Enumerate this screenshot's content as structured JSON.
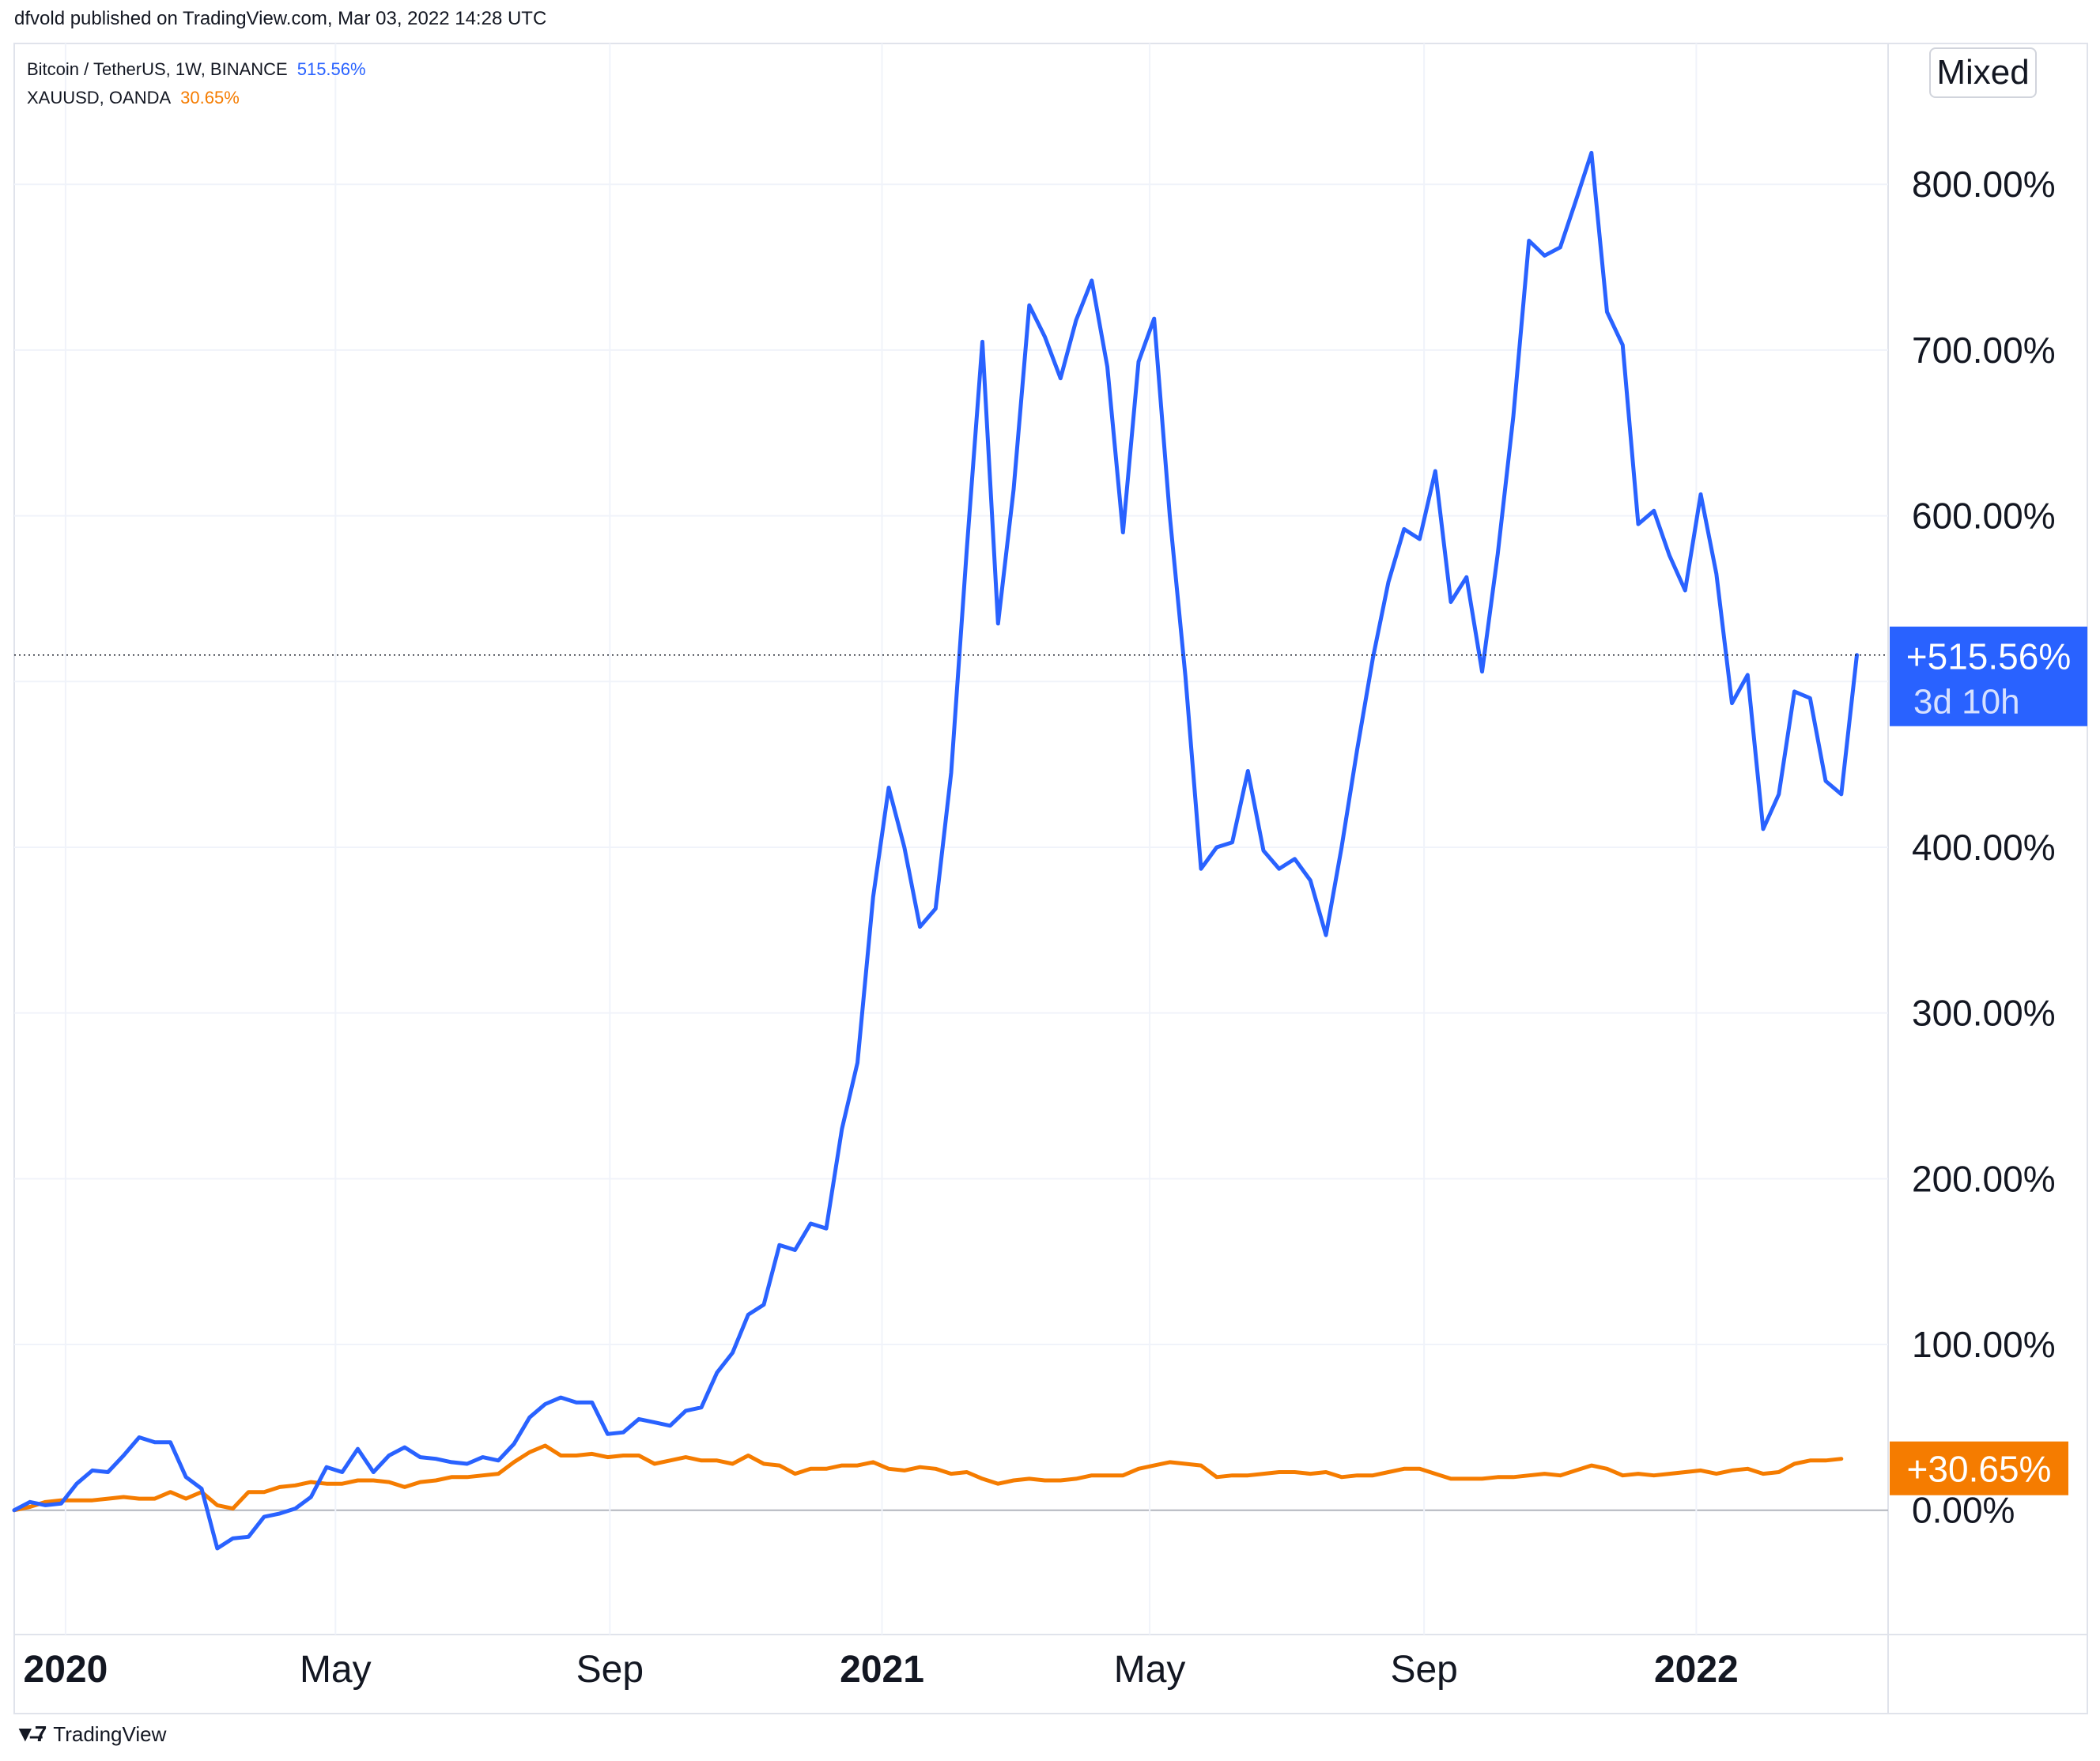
{
  "header": {
    "text": "dfvold published on TradingView.com, Mar 03, 2022 14:28 UTC"
  },
  "mode_button": {
    "label": "Mixed"
  },
  "footer": {
    "brand": "TradingView"
  },
  "colors": {
    "btc": "#2962ff",
    "gold": "#f57c00",
    "grid": "#f0f3fa",
    "axis_border": "#e0e3eb"
  },
  "chart_data": {
    "type": "line",
    "y_unit": "%",
    "ylim": [
      -75,
      885
    ],
    "grid": true,
    "y_ticks": [
      {
        "value": 0,
        "label": "0.00%"
      },
      {
        "value": 100,
        "label": "100.00%"
      },
      {
        "value": 200,
        "label": "200.00%"
      },
      {
        "value": 300,
        "label": "300.00%"
      },
      {
        "value": 400,
        "label": "400.00%"
      },
      {
        "value": 600,
        "label": "600.00%"
      },
      {
        "value": 700,
        "label": "700.00%"
      },
      {
        "value": 800,
        "label": "800.00%"
      }
    ],
    "x_ticks": [
      {
        "date": "2020-01-01",
        "label": "2020",
        "bold": true
      },
      {
        "date": "2020-05-01",
        "label": "May",
        "bold": false
      },
      {
        "date": "2020-09-01",
        "label": "Sep",
        "bold": false
      },
      {
        "date": "2021-01-01",
        "label": "2021",
        "bold": true
      },
      {
        "date": "2021-05-01",
        "label": "May",
        "bold": false
      },
      {
        "date": "2021-09-01",
        "label": "Sep",
        "bold": false
      },
      {
        "date": "2022-01-01",
        "label": "2022",
        "bold": true
      }
    ],
    "x_range": [
      "2019-12-09",
      "2022-03-28"
    ],
    "series": [
      {
        "name": "Bitcoin / TetherUS, 1W, BINANCE",
        "legend_value": "515.56%",
        "last_label": "+515.56%",
        "countdown": "3d 10h",
        "color": "#2962ff",
        "points": [
          [
            "2019-12-09",
            0
          ],
          [
            "2019-12-16",
            5
          ],
          [
            "2019-12-23",
            3
          ],
          [
            "2019-12-30",
            4
          ],
          [
            "2020-01-06",
            16
          ],
          [
            "2020-01-13",
            24
          ],
          [
            "2020-01-20",
            23
          ],
          [
            "2020-01-27",
            33
          ],
          [
            "2020-02-03",
            44
          ],
          [
            "2020-02-10",
            41
          ],
          [
            "2020-02-17",
            41
          ],
          [
            "2020-02-24",
            20
          ],
          [
            "2020-03-02",
            13
          ],
          [
            "2020-03-09",
            -23
          ],
          [
            "2020-03-16",
            -17
          ],
          [
            "2020-03-23",
            -16
          ],
          [
            "2020-03-30",
            -4
          ],
          [
            "2020-04-06",
            -2
          ],
          [
            "2020-04-13",
            1
          ],
          [
            "2020-04-20",
            8
          ],
          [
            "2020-04-27",
            26
          ],
          [
            "2020-05-04",
            23
          ],
          [
            "2020-05-11",
            37
          ],
          [
            "2020-05-18",
            23
          ],
          [
            "2020-05-25",
            33
          ],
          [
            "2020-06-01",
            38
          ],
          [
            "2020-06-08",
            32
          ],
          [
            "2020-06-15",
            31
          ],
          [
            "2020-06-22",
            29
          ],
          [
            "2020-06-29",
            28
          ],
          [
            "2020-07-06",
            32
          ],
          [
            "2020-07-13",
            30
          ],
          [
            "2020-07-20",
            40
          ],
          [
            "2020-07-27",
            56
          ],
          [
            "2020-08-03",
            64
          ],
          [
            "2020-08-10",
            68
          ],
          [
            "2020-08-17",
            65
          ],
          [
            "2020-08-24",
            65
          ],
          [
            "2020-08-31",
            46
          ],
          [
            "2020-09-07",
            47
          ],
          [
            "2020-09-14",
            55
          ],
          [
            "2020-09-21",
            53
          ],
          [
            "2020-09-28",
            51
          ],
          [
            "2020-10-05",
            60
          ],
          [
            "2020-10-12",
            62
          ],
          [
            "2020-10-19",
            83
          ],
          [
            "2020-10-26",
            95
          ],
          [
            "2020-11-02",
            118
          ],
          [
            "2020-11-09",
            124
          ],
          [
            "2020-11-16",
            160
          ],
          [
            "2020-11-23",
            157
          ],
          [
            "2020-11-30",
            173
          ],
          [
            "2020-12-07",
            170
          ],
          [
            "2020-12-14",
            230
          ],
          [
            "2020-12-21",
            270
          ],
          [
            "2020-12-28",
            370
          ],
          [
            "2021-01-04",
            436
          ],
          [
            "2021-01-11",
            400
          ],
          [
            "2021-01-18",
            352
          ],
          [
            "2021-01-25",
            363
          ],
          [
            "2021-02-01",
            445
          ],
          [
            "2021-02-08",
            580
          ],
          [
            "2021-02-15",
            705
          ],
          [
            "2021-02-22",
            535
          ],
          [
            "2021-03-01",
            616
          ],
          [
            "2021-03-08",
            727
          ],
          [
            "2021-03-15",
            708
          ],
          [
            "2021-03-22",
            683
          ],
          [
            "2021-03-29",
            718
          ],
          [
            "2021-04-05",
            742
          ],
          [
            "2021-04-12",
            690
          ],
          [
            "2021-04-19",
            590
          ],
          [
            "2021-04-26",
            693
          ],
          [
            "2021-05-03",
            719
          ],
          [
            "2021-05-10",
            600
          ],
          [
            "2021-05-17",
            503
          ],
          [
            "2021-05-24",
            387
          ],
          [
            "2021-05-31",
            400
          ],
          [
            "2021-06-07",
            403
          ],
          [
            "2021-06-14",
            446
          ],
          [
            "2021-06-21",
            398
          ],
          [
            "2021-06-28",
            387
          ],
          [
            "2021-07-05",
            393
          ],
          [
            "2021-07-12",
            380
          ],
          [
            "2021-07-19",
            347
          ],
          [
            "2021-07-26",
            400
          ],
          [
            "2021-08-02",
            459
          ],
          [
            "2021-08-09",
            514
          ],
          [
            "2021-08-16",
            560
          ],
          [
            "2021-08-23",
            592
          ],
          [
            "2021-08-30",
            586
          ],
          [
            "2021-09-06",
            627
          ],
          [
            "2021-09-13",
            548
          ],
          [
            "2021-09-20",
            563
          ],
          [
            "2021-09-27",
            506
          ],
          [
            "2021-10-04",
            577
          ],
          [
            "2021-10-11",
            660
          ],
          [
            "2021-10-18",
            766
          ],
          [
            "2021-10-25",
            757
          ],
          [
            "2021-11-01",
            762
          ],
          [
            "2021-11-08",
            790
          ],
          [
            "2021-11-15",
            819
          ],
          [
            "2021-11-22",
            723
          ],
          [
            "2021-11-29",
            703
          ],
          [
            "2021-12-06",
            595
          ],
          [
            "2021-12-13",
            603
          ],
          [
            "2021-12-20",
            576
          ],
          [
            "2021-12-27",
            555
          ],
          [
            "2022-01-03",
            613
          ],
          [
            "2022-01-10",
            565
          ],
          [
            "2022-01-17",
            487
          ],
          [
            "2022-01-24",
            504
          ],
          [
            "2022-01-31",
            411
          ],
          [
            "2022-02-07",
            432
          ],
          [
            "2022-02-14",
            494
          ],
          [
            "2022-02-21",
            490
          ],
          [
            "2022-02-28",
            440
          ],
          [
            "2022-03-07",
            432
          ],
          [
            "2022-03-14",
            516
          ]
        ]
      },
      {
        "name": "XAUUSD, OANDA",
        "legend_value": "30.65%",
        "last_label": "+30.65%",
        "color": "#f57c00",
        "points": [
          [
            "2019-12-09",
            0
          ],
          [
            "2019-12-16",
            2
          ],
          [
            "2019-12-23",
            5
          ],
          [
            "2019-12-30",
            6
          ],
          [
            "2020-01-06",
            6
          ],
          [
            "2020-01-13",
            6
          ],
          [
            "2020-01-20",
            7
          ],
          [
            "2020-01-27",
            8
          ],
          [
            "2020-02-03",
            7
          ],
          [
            "2020-02-10",
            7
          ],
          [
            "2020-02-17",
            11
          ],
          [
            "2020-02-24",
            7
          ],
          [
            "2020-03-02",
            11
          ],
          [
            "2020-03-09",
            3
          ],
          [
            "2020-03-16",
            1
          ],
          [
            "2020-03-23",
            11
          ],
          [
            "2020-03-30",
            11
          ],
          [
            "2020-04-06",
            14
          ],
          [
            "2020-04-13",
            15
          ],
          [
            "2020-04-20",
            17
          ],
          [
            "2020-04-27",
            16
          ],
          [
            "2020-05-04",
            16
          ],
          [
            "2020-05-11",
            18
          ],
          [
            "2020-05-18",
            18
          ],
          [
            "2020-05-25",
            17
          ],
          [
            "2020-06-01",
            14
          ],
          [
            "2020-06-08",
            17
          ],
          [
            "2020-06-15",
            18
          ],
          [
            "2020-06-22",
            20
          ],
          [
            "2020-06-29",
            20
          ],
          [
            "2020-07-06",
            21
          ],
          [
            "2020-07-13",
            22
          ],
          [
            "2020-07-20",
            29
          ],
          [
            "2020-07-27",
            35
          ],
          [
            "2020-08-03",
            39
          ],
          [
            "2020-08-10",
            33
          ],
          [
            "2020-08-17",
            33
          ],
          [
            "2020-08-24",
            34
          ],
          [
            "2020-08-31",
            32
          ],
          [
            "2020-09-07",
            33
          ],
          [
            "2020-09-14",
            33
          ],
          [
            "2020-09-21",
            28
          ],
          [
            "2020-09-28",
            30
          ],
          [
            "2020-10-05",
            32
          ],
          [
            "2020-10-12",
            30
          ],
          [
            "2020-10-19",
            30
          ],
          [
            "2020-10-26",
            28
          ],
          [
            "2020-11-02",
            33
          ],
          [
            "2020-11-09",
            28
          ],
          [
            "2020-11-16",
            27
          ],
          [
            "2020-11-23",
            22
          ],
          [
            "2020-11-30",
            25
          ],
          [
            "2020-12-07",
            25
          ],
          [
            "2020-12-14",
            27
          ],
          [
            "2020-12-21",
            27
          ],
          [
            "2020-12-28",
            29
          ],
          [
            "2021-01-04",
            25
          ],
          [
            "2021-01-11",
            24
          ],
          [
            "2021-01-18",
            26
          ],
          [
            "2021-01-25",
            25
          ],
          [
            "2021-02-01",
            22
          ],
          [
            "2021-02-08",
            23
          ],
          [
            "2021-02-15",
            19
          ],
          [
            "2021-02-22",
            16
          ],
          [
            "2021-03-01",
            18
          ],
          [
            "2021-03-08",
            19
          ],
          [
            "2021-03-15",
            18
          ],
          [
            "2021-03-22",
            18
          ],
          [
            "2021-03-29",
            19
          ],
          [
            "2021-04-05",
            21
          ],
          [
            "2021-04-12",
            21
          ],
          [
            "2021-04-19",
            21
          ],
          [
            "2021-04-26",
            25
          ],
          [
            "2021-05-03",
            27
          ],
          [
            "2021-05-10",
            29
          ],
          [
            "2021-05-17",
            28
          ],
          [
            "2021-05-24",
            27
          ],
          [
            "2021-05-31",
            20
          ],
          [
            "2021-06-07",
            21
          ],
          [
            "2021-06-14",
            21
          ],
          [
            "2021-06-21",
            22
          ],
          [
            "2021-06-28",
            23
          ],
          [
            "2021-07-05",
            23
          ],
          [
            "2021-07-12",
            22
          ],
          [
            "2021-07-19",
            23
          ],
          [
            "2021-07-26",
            20
          ],
          [
            "2021-08-02",
            21
          ],
          [
            "2021-08-09",
            21
          ],
          [
            "2021-08-16",
            23
          ],
          [
            "2021-08-23",
            25
          ],
          [
            "2021-08-30",
            25
          ],
          [
            "2021-09-06",
            22
          ],
          [
            "2021-09-13",
            19
          ],
          [
            "2021-09-20",
            19
          ],
          [
            "2021-09-27",
            19
          ],
          [
            "2021-10-04",
            20
          ],
          [
            "2021-10-11",
            20
          ],
          [
            "2021-10-18",
            21
          ],
          [
            "2021-10-25",
            22
          ],
          [
            "2021-11-01",
            21
          ],
          [
            "2021-11-08",
            24
          ],
          [
            "2021-11-15",
            27
          ],
          [
            "2021-11-22",
            25
          ],
          [
            "2021-11-29",
            21
          ],
          [
            "2021-12-06",
            22
          ],
          [
            "2021-12-13",
            21
          ],
          [
            "2021-12-20",
            22
          ],
          [
            "2021-12-27",
            23
          ],
          [
            "2022-01-03",
            24
          ],
          [
            "2022-01-10",
            22
          ],
          [
            "2022-01-17",
            24
          ],
          [
            "2022-01-24",
            25
          ],
          [
            "2022-01-31",
            22
          ],
          [
            "2022-02-07",
            23
          ],
          [
            "2022-02-14",
            28
          ],
          [
            "2022-02-21",
            30
          ],
          [
            "2022-02-28",
            30
          ],
          [
            "2022-03-07",
            31
          ]
        ]
      }
    ]
  }
}
